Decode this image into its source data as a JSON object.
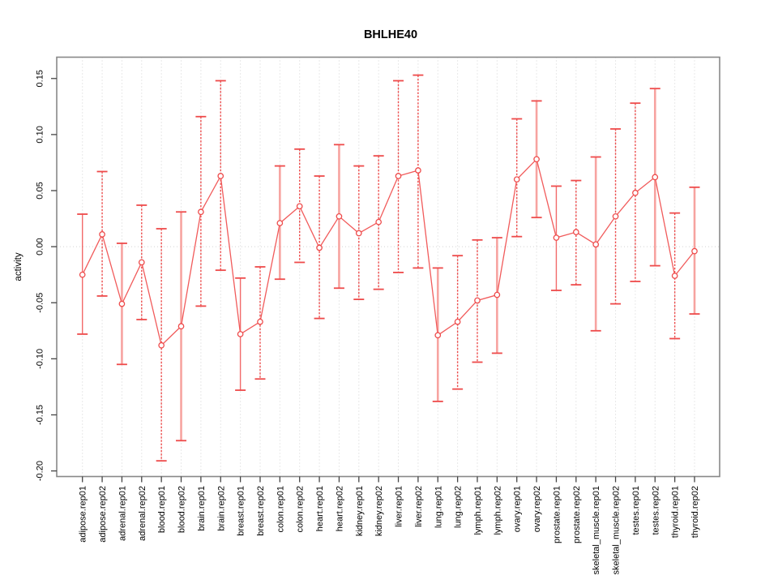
{
  "chart_data": {
    "type": "errorbar-line",
    "title": "BHLHE40",
    "xlabel": "",
    "ylabel": "activity",
    "ylim": [
      -0.205,
      0.169
    ],
    "yticks": [
      -0.2,
      -0.15,
      -0.1,
      -0.05,
      0.0,
      0.05,
      0.1,
      0.15
    ],
    "grid": "dotted vertical gridline per category; dotted horizontal line at 0",
    "legend": "none",
    "categories": [
      "adipose.rep01",
      "adipose.rep02",
      "adrenal.rep01",
      "adrenal.rep02",
      "blood.rep01",
      "blood.rep02",
      "brain.rep01",
      "brain.rep02",
      "breast.rep01",
      "breast.rep02",
      "colon.rep01",
      "colon.rep02",
      "heart.rep01",
      "heart.rep02",
      "kidney.rep01",
      "kidney.rep02",
      "liver.rep01",
      "liver.rep02",
      "lung.rep01",
      "lung.rep02",
      "lymph.rep01",
      "lymph.rep02",
      "ovary.rep01",
      "ovary.rep02",
      "prostate.rep01",
      "prostate.rep02",
      "skeletal_muscle.rep01",
      "skeletal_muscle.rep02",
      "testes.rep01",
      "testes.rep02",
      "thyroid.rep01",
      "thyroid.rep02"
    ],
    "series": [
      {
        "name": "activity",
        "values": [
          -0.025,
          0.011,
          -0.051,
          -0.014,
          -0.088,
          -0.071,
          0.031,
          0.063,
          -0.078,
          -0.067,
          0.021,
          0.036,
          -0.001,
          0.027,
          0.012,
          0.022,
          0.063,
          0.068,
          -0.079,
          -0.067,
          -0.048,
          -0.043,
          0.06,
          0.078,
          0.008,
          0.013,
          0.002,
          0.027,
          0.048,
          0.062,
          -0.026,
          -0.004
        ],
        "ci_low": [
          -0.078,
          -0.044,
          -0.105,
          -0.065,
          -0.191,
          -0.173,
          -0.053,
          -0.021,
          -0.128,
          -0.118,
          -0.029,
          -0.014,
          -0.064,
          -0.037,
          -0.047,
          -0.038,
          -0.023,
          -0.019,
          -0.138,
          -0.127,
          -0.103,
          -0.095,
          0.009,
          0.026,
          -0.039,
          -0.034,
          -0.075,
          -0.051,
          -0.031,
          -0.017,
          -0.082,
          -0.06
        ],
        "ci_high": [
          0.029,
          0.067,
          0.003,
          0.037,
          0.016,
          0.031,
          0.116,
          0.148,
          -0.028,
          -0.018,
          0.072,
          0.087,
          0.063,
          0.091,
          0.072,
          0.081,
          0.148,
          0.153,
          -0.019,
          -0.008,
          0.006,
          0.008,
          0.114,
          0.13,
          0.054,
          0.059,
          0.08,
          0.105,
          0.128,
          0.141,
          0.03,
          0.053
        ],
        "bar_styles": [
          "solid",
          "dashed",
          "thick",
          "dashed",
          "dashed",
          "thick",
          "dashed",
          "dashed",
          "solid",
          "dashed",
          "thick",
          "dashed",
          "dashed",
          "thick",
          "dashed",
          "dashed",
          "dashed",
          "dashed",
          "thick",
          "dashed",
          "dashed",
          "thick",
          "dashed",
          "thick",
          "solid",
          "dashed",
          "thick",
          "dashed",
          "dashed",
          "thick",
          "dashed",
          "thick"
        ]
      }
    ],
    "colors": {
      "point": "#EE4B4B",
      "line": "#F15B5B",
      "bar_solid": "#F26A6A",
      "bar_dashed": "#ED4E4E",
      "bar_thick": "#F7A3A0",
      "cap": "#EE4B4B",
      "grid": "#D2D2D2",
      "box": "#888888",
      "tick": "#444444",
      "text": "#000000"
    }
  }
}
